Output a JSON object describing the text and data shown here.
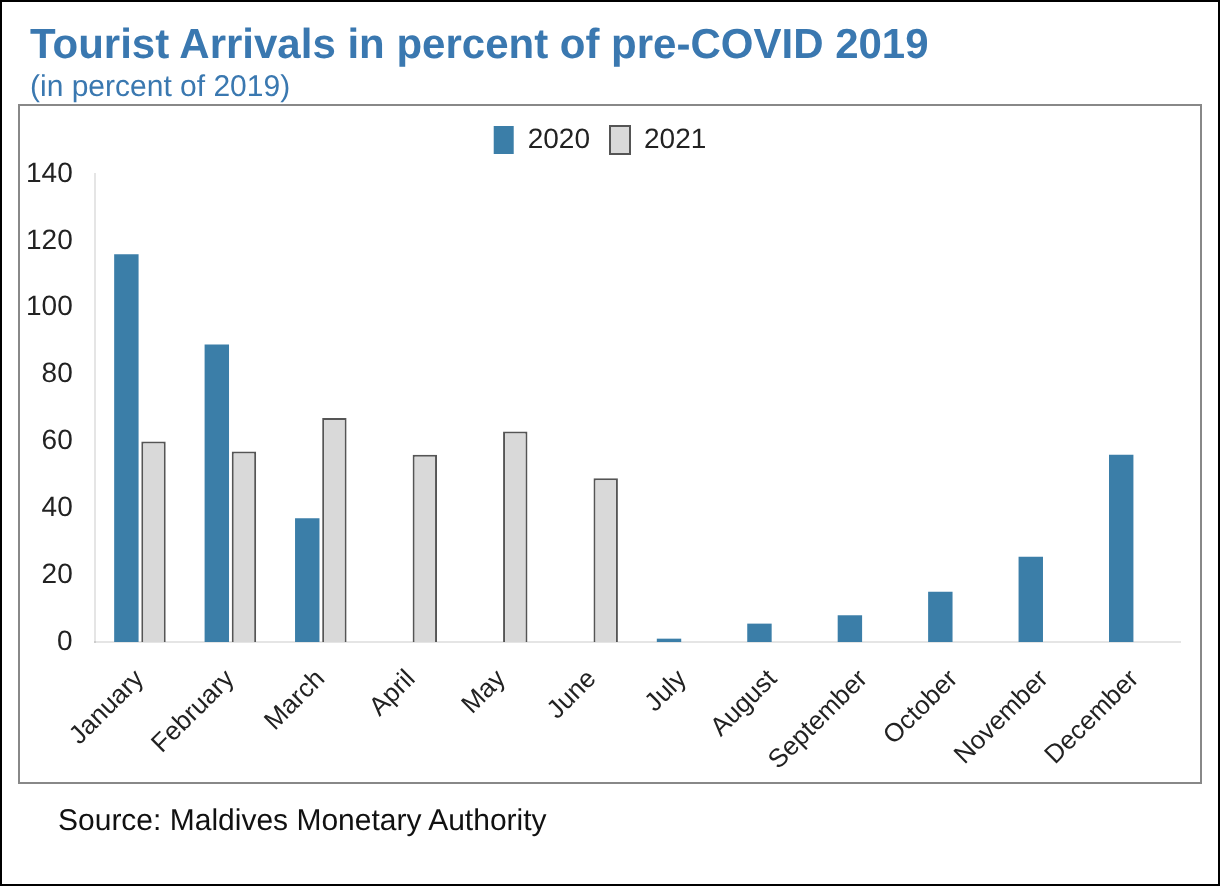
{
  "chart_data": {
    "type": "bar",
    "title": "Tourist Arrivals in percent of pre-COVID 2019",
    "subtitle": "(in percent of 2019)",
    "categories": [
      "January",
      "February",
      "March",
      "April",
      "May",
      "June",
      "July",
      "August",
      "September",
      "October",
      "November",
      "December"
    ],
    "series": [
      {
        "name": "2020",
        "color": "#3b7ea8",
        "values": [
          116,
          89,
          37,
          0,
          0,
          0,
          1,
          5.5,
          8,
          15,
          25.5,
          56
        ]
      },
      {
        "name": "2021",
        "color": "#d9d9d9",
        "values": [
          60,
          57,
          67,
          56,
          63,
          49,
          null,
          null,
          null,
          null,
          null,
          null
        ]
      }
    ],
    "ylim": [
      0,
      140
    ],
    "yticks": [
      0,
      20,
      40,
      60,
      80,
      100,
      120,
      140
    ],
    "grid": false,
    "legend": "top",
    "annotations": [
      "Source: Maldives Monetary Authority"
    ]
  }
}
